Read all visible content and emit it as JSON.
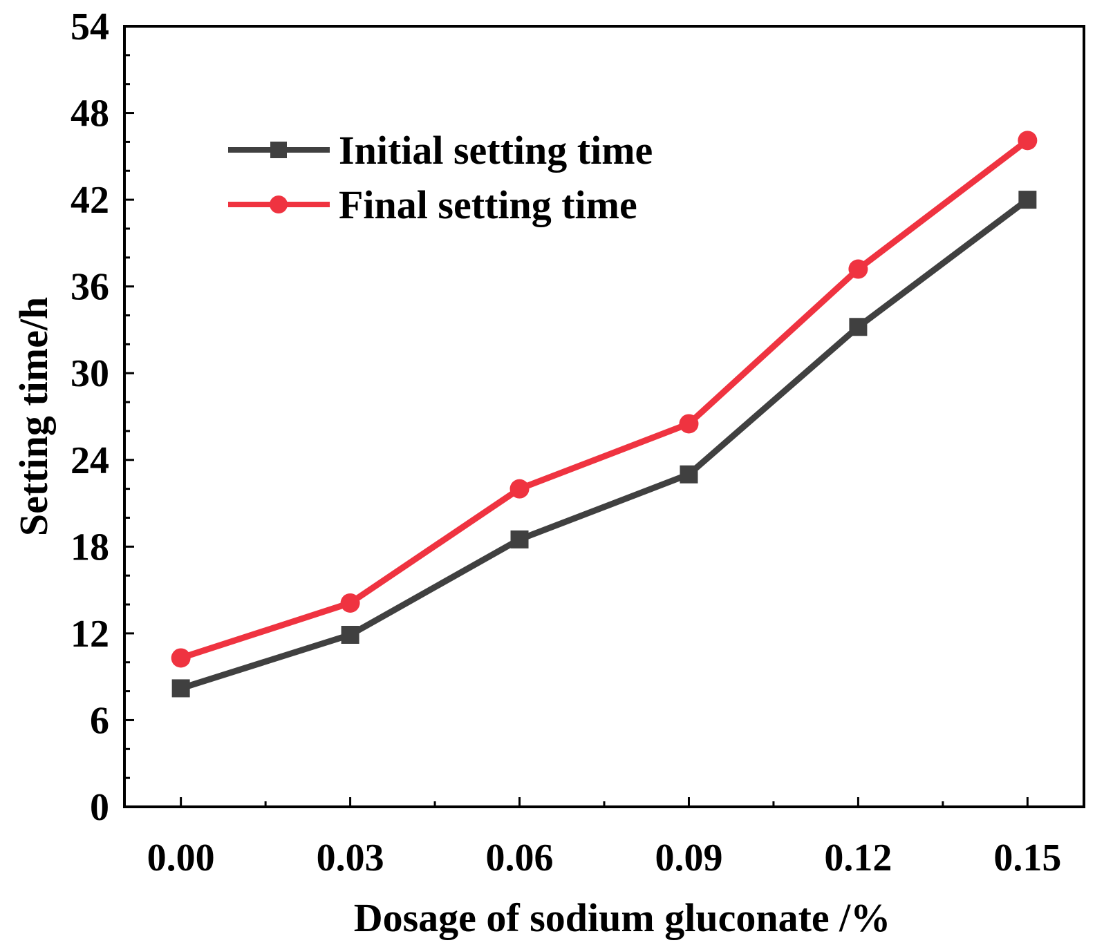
{
  "chart_data": {
    "type": "line",
    "title": "",
    "xlabel": "Dosage of sodium gluconate /%",
    "ylabel": "Setting time/h",
    "x": [
      0.0,
      0.03,
      0.06,
      0.09,
      0.12,
      0.15
    ],
    "x_tick_labels": [
      "0.00",
      "0.03",
      "0.06",
      "0.09",
      "0.12",
      "0.15"
    ],
    "xlim": [
      -0.01,
      0.16
    ],
    "ylim": [
      0,
      54
    ],
    "y_ticks": [
      0,
      6,
      12,
      18,
      24,
      30,
      36,
      42,
      48,
      54
    ],
    "y_tick_labels": [
      "0",
      "6",
      "12",
      "18",
      "24",
      "30",
      "36",
      "42",
      "48",
      "54"
    ],
    "grid": false,
    "legend_position": "top-left",
    "series": [
      {
        "name": "Initial setting time",
        "marker": "square",
        "color": "#404040",
        "values": [
          8.2,
          11.9,
          18.5,
          23.0,
          33.2,
          42.0
        ]
      },
      {
        "name": "Final setting time",
        "marker": "circle",
        "color": "#ef3340",
        "values": [
          10.3,
          14.1,
          22.0,
          26.5,
          37.2,
          46.1
        ]
      }
    ]
  }
}
